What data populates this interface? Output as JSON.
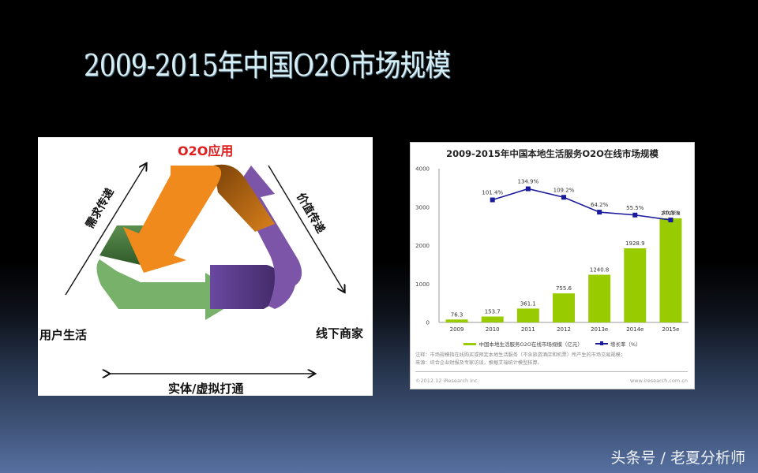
{
  "slide": {
    "title": "2009-2015年中国O2O市场规模",
    "watermark": "头条号 / 老夏分析师"
  },
  "diagram": {
    "labels": {
      "top": "O2O应用",
      "left": "用户生活",
      "right": "线下商家",
      "bottom": "实体/虚拟打通",
      "left_arrow": "需求传递",
      "right_arrow": "价值传递"
    },
    "colors": {
      "orange": "#f08a1c",
      "orange_dark": "#9a5a10",
      "purple": "#7c55a8",
      "purple_dark": "#4e3373",
      "green": "#78b26a",
      "green_dark": "#3e6a38",
      "label_red": "#e01e1e"
    }
  },
  "chart": {
    "title": "2009-2015年中国本地生活服务O2O在线市场规模",
    "legend": {
      "bar": "中国本地生活服务O2O在线市场规模（亿元）",
      "line": "增长率（%）"
    },
    "notes": [
      "注释：市场规模指在线购买或预定本地生活服务（不含旅游酒店和机票）所产生的市场交易规模；",
      "来源：综合企业财报及专家访谈，根据艾瑞统计模型核算。"
    ],
    "footer_left": "©2012.12 iResearch Inc.",
    "footer_right": "www.iresearch.com.cn",
    "colors": {
      "bar": "#99cc00",
      "line": "#1a1a9c"
    }
  },
  "chart_data": {
    "type": "bar",
    "title": "2009-2015年中国本地生活服务O2O在线市场规模",
    "categories": [
      "2009",
      "2010",
      "2011",
      "2012",
      "2013e",
      "2014e",
      "2015e"
    ],
    "series": [
      {
        "name": "中国本地生活服务O2O在线市场规模（亿元）",
        "type": "bar",
        "values": [
          76.3,
          153.7,
          361.1,
          755.6,
          1240.8,
          1928.9,
          2709.8
        ],
        "labels": [
          "76.3",
          "153.7",
          "361.1",
          "755.6",
          "1240.8",
          "1928.9",
          "2709.8"
        ]
      },
      {
        "name": "增长率（%）",
        "type": "line",
        "values": [
          null,
          101.4,
          134.9,
          109.2,
          64.2,
          55.5,
          40.5
        ],
        "labels": [
          "",
          "101.4%",
          "134.9%",
          "109.2%",
          "64.2%",
          "55.5%",
          "40.5%"
        ]
      }
    ],
    "yticks": [
      "0",
      "1000",
      "2000",
      "3000",
      "4000"
    ],
    "ylim": [
      0,
      4000
    ],
    "xlabel": "",
    "ylabel": "",
    "grid": false,
    "legend_position": "bottom"
  }
}
